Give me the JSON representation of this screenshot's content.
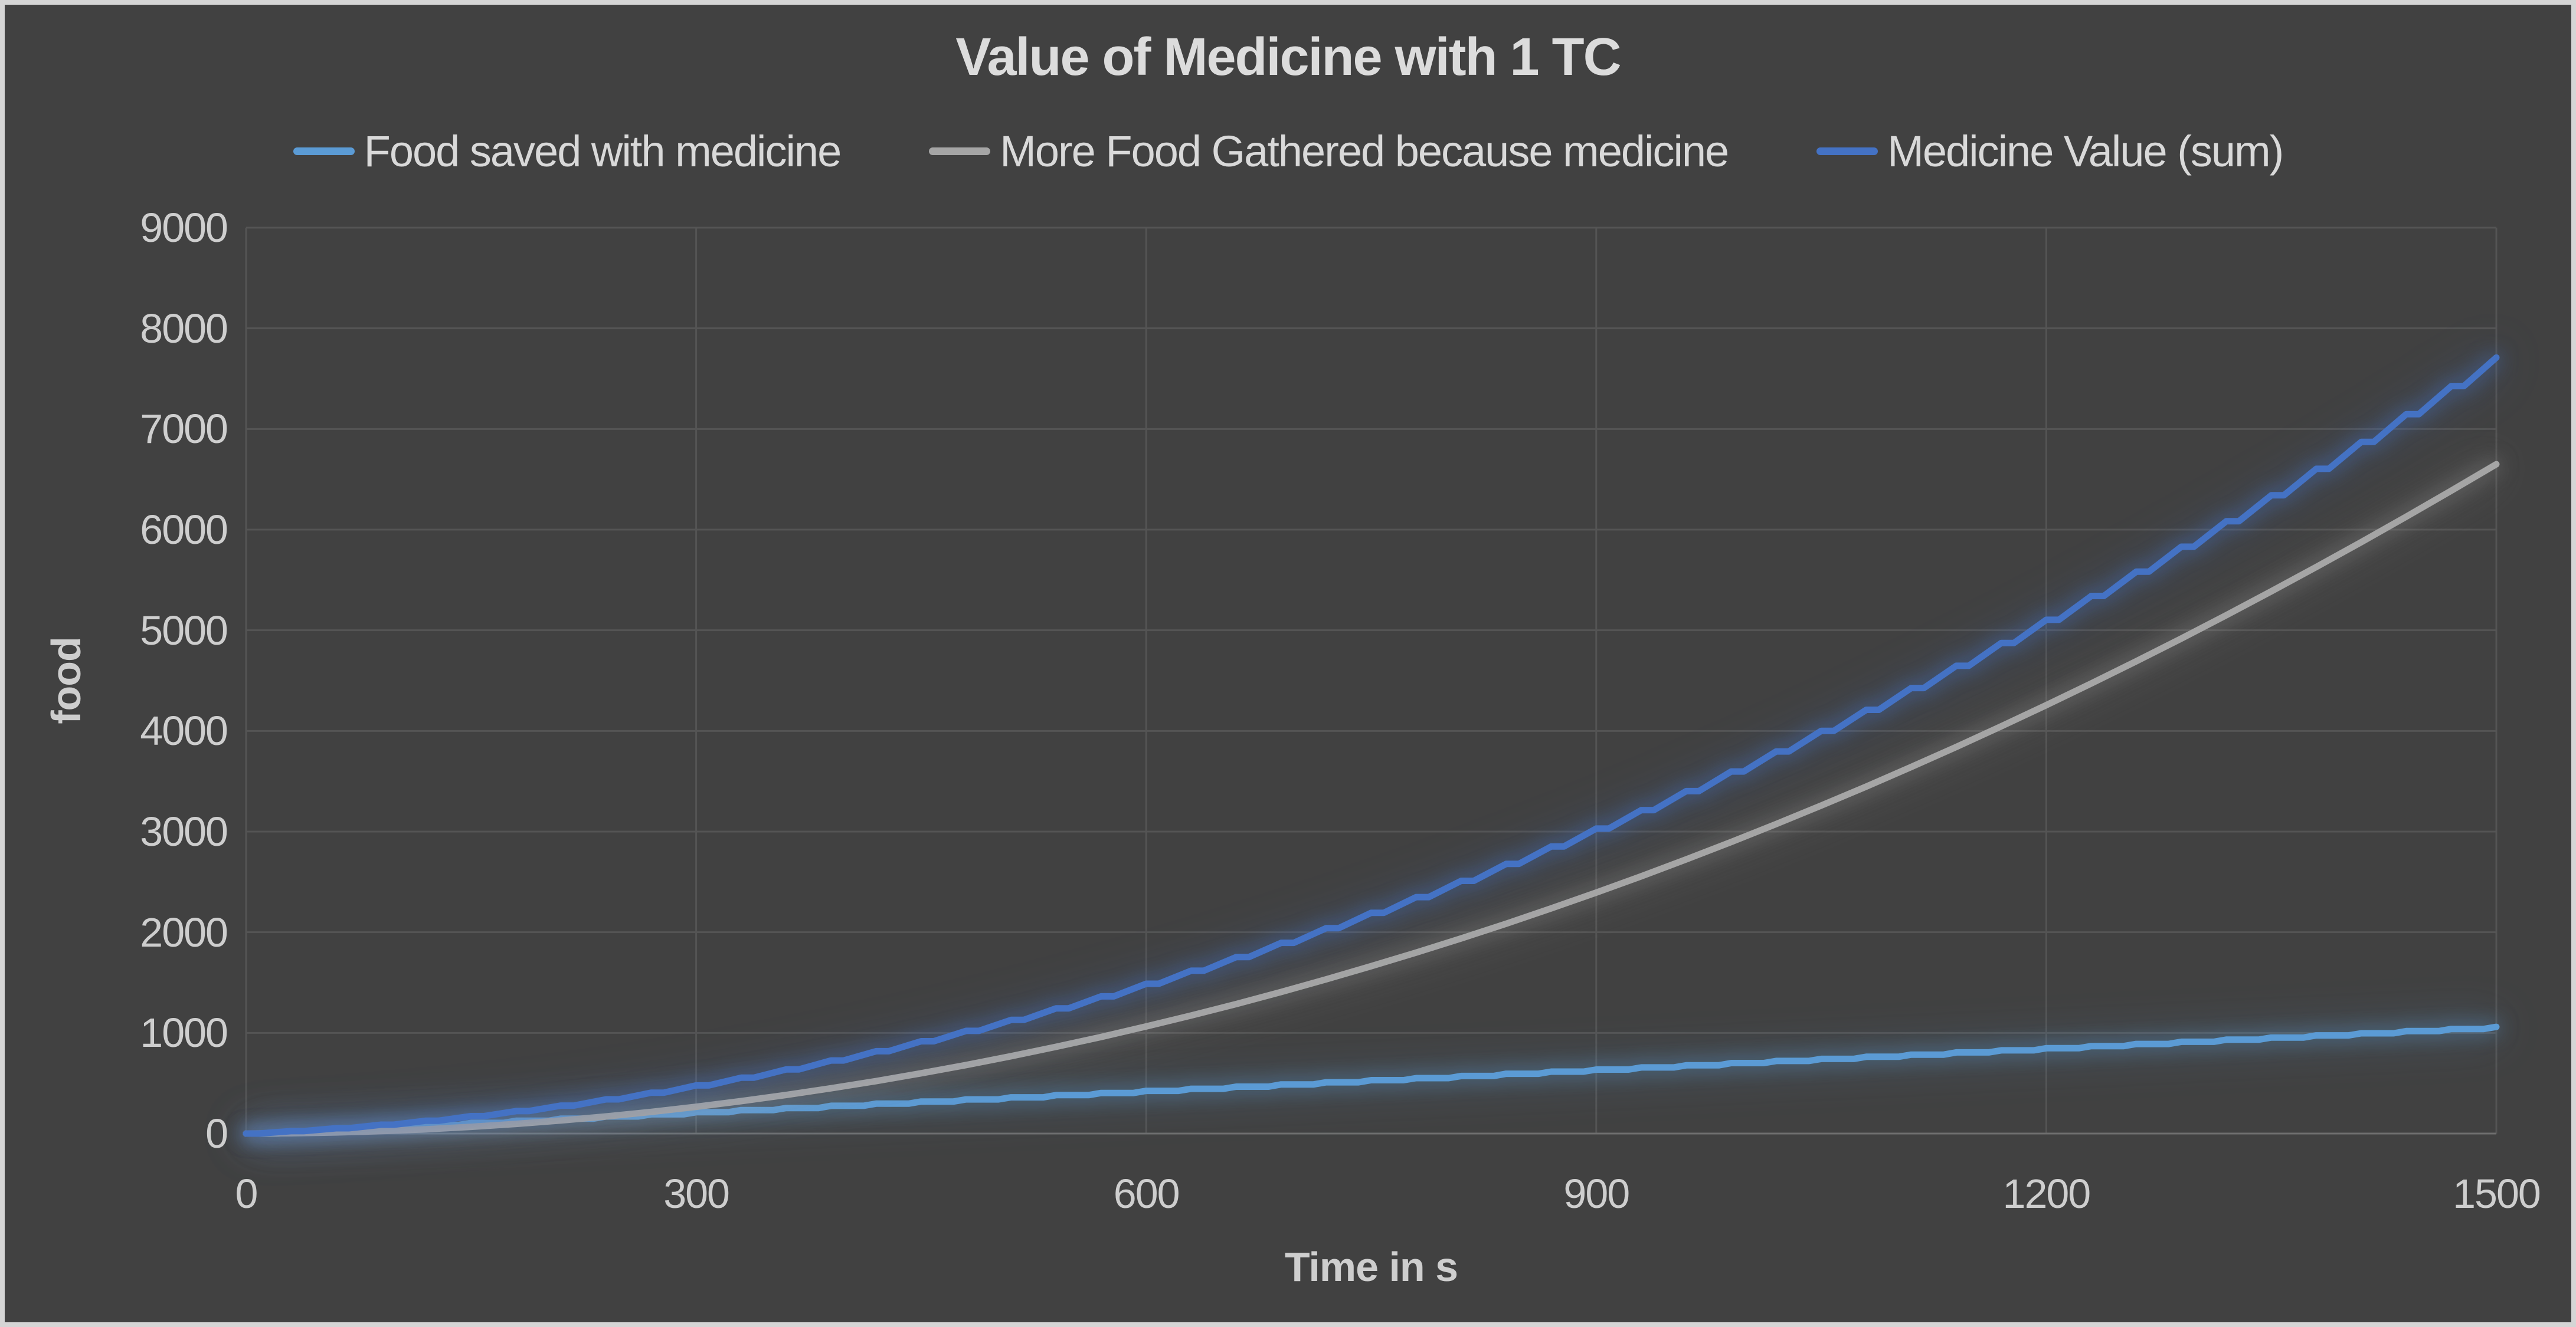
{
  "frame": {
    "border_color": "#D5D5D5",
    "background_color": "#414141"
  },
  "chart_data": {
    "type": "line",
    "title": "Value of Medicine with 1 TC",
    "xlabel": "Time in s",
    "ylabel": "food",
    "xlim": [
      0,
      1500
    ],
    "ylim": [
      0,
      9000
    ],
    "x_ticks": [
      0,
      300,
      600,
      900,
      1200,
      1500
    ],
    "y_ticks": [
      0,
      1000,
      2000,
      3000,
      4000,
      5000,
      6000,
      7000,
      8000,
      9000
    ],
    "grid": true,
    "legend_position": "top",
    "gridline_color": "#545454",
    "axis_line_color": "#6E6E6E",
    "axis_text_color": "#CECECE",
    "title_color": "#DCDCDC",
    "x": [
      0,
      30,
      60,
      90,
      120,
      150,
      180,
      210,
      240,
      270,
      300,
      330,
      360,
      390,
      420,
      450,
      480,
      510,
      540,
      570,
      600,
      630,
      660,
      690,
      720,
      750,
      780,
      810,
      840,
      870,
      900,
      930,
      960,
      990,
      1020,
      1050,
      1080,
      1110,
      1140,
      1170,
      1200,
      1230,
      1260,
      1290,
      1320,
      1350,
      1380,
      1410,
      1440,
      1470,
      1500
    ],
    "series": [
      {
        "name": "Food saved with medicine",
        "color": "#5B9BD5",
        "style": "stepped",
        "values": [
          0,
          21,
          42,
          64,
          85,
          106,
          127,
          148,
          170,
          191,
          212,
          233,
          254,
          276,
          297,
          318,
          339,
          360,
          382,
          403,
          424,
          445,
          466,
          488,
          509,
          530,
          551,
          572,
          594,
          615,
          636,
          657,
          678,
          700,
          721,
          742,
          763,
          784,
          806,
          827,
          848,
          869,
          890,
          912,
          933,
          954,
          975,
          996,
          1018,
          1039,
          1060
        ]
      },
      {
        "name": "More Food Gathered because medicine",
        "color": "#A5A5A5",
        "style": "smooth",
        "values": [
          0,
          3,
          11,
          24,
          43,
          67,
          96,
          130,
          170,
          215,
          266,
          322,
          383,
          450,
          521,
          599,
          681,
          769,
          862,
          960,
          1064,
          1173,
          1287,
          1407,
          1532,
          1663,
          1798,
          1939,
          2085,
          2237,
          2394,
          2556,
          2724,
          2897,
          3075,
          3259,
          3447,
          3642,
          3841,
          4046,
          4256,
          4472,
          4692,
          4918,
          5150,
          5387,
          5629,
          5876,
          6129,
          6387,
          6650
        ]
      },
      {
        "name": "Medicine Value (sum)",
        "color": "#4472C4",
        "style": "stepped-fine",
        "values": [
          0,
          24,
          53,
          88,
          128,
          173,
          223,
          278,
          340,
          406,
          478,
          555,
          637,
          726,
          818,
          917,
          1020,
          1129,
          1244,
          1363,
          1488,
          1618,
          1753,
          1895,
          2041,
          2193,
          2349,
          2511,
          2679,
          2852,
          3030,
          3213,
          3402,
          3597,
          3796,
          4001,
          4210,
          4426,
          4647,
          4873,
          5104,
          5341,
          5582,
          5830,
          6083,
          6341,
          6604,
          6872,
          7147,
          7426,
          7710
        ]
      }
    ]
  }
}
